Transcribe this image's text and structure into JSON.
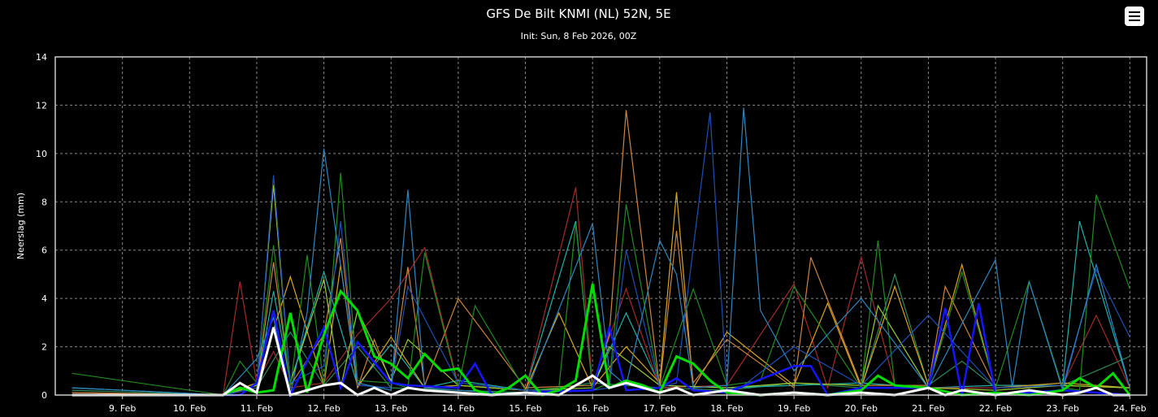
{
  "chart_data": {
    "type": "line",
    "title": "GFS De Bilt KNMI (NL) 52N, 5E",
    "subtitle": "Init: Sun, 8 Feb 2026, 00Z",
    "ylabel": "Neerslag (mm)",
    "xlabel": "",
    "ylim": [
      0,
      14
    ],
    "yticks": [
      0,
      2,
      4,
      6,
      8,
      10,
      12,
      14
    ],
    "xlim": [
      "2026-02-08T00:00",
      "2026-02-24T06:00"
    ],
    "xtick_labels": [
      "9. Feb",
      "10. Feb",
      "11. Feb",
      "12. Feb",
      "13. Feb",
      "14. Feb",
      "15. Feb",
      "16. Feb",
      "17. Feb",
      "18. Feb",
      "19. Feb",
      "20. Feb",
      "21. Feb",
      "22. Feb",
      "23. Feb",
      "24. Feb"
    ],
    "grid": true,
    "legend": "none",
    "colors": {
      "background": "#000000",
      "text": "#ffffff",
      "grid": "#888888",
      "mean": "#ffffff",
      "operational": "#00dd00",
      "control": "#0000ff"
    },
    "series": [
      {
        "color": "#ffffff",
        "width": 3,
        "x": [
          "2026-02-08T06:00",
          "2026-02-10T12:00",
          "2026-02-10T18:00",
          "2026-02-11T00:00",
          "2026-02-11T06:00",
          "2026-02-11T12:00",
          "2026-02-12T00:00",
          "2026-02-12T06:00",
          "2026-02-12T12:00",
          "2026-02-12T18:00",
          "2026-02-13T00:00",
          "2026-02-13T06:00",
          "2026-02-13T12:00",
          "2026-02-14T00:00",
          "2026-02-14T12:00",
          "2026-02-15T00:00",
          "2026-02-15T12:00",
          "2026-02-15T18:00",
          "2026-02-16T00:00",
          "2026-02-16T06:00",
          "2026-02-16T12:00",
          "2026-02-17T00:00",
          "2026-02-17T06:00",
          "2026-02-17T12:00",
          "2026-02-18T00:00",
          "2026-02-18T12:00",
          "2026-02-19T00:00",
          "2026-02-19T12:00",
          "2026-02-20T00:00",
          "2026-02-20T12:00",
          "2026-02-21T00:00",
          "2026-02-21T06:00",
          "2026-02-21T12:00",
          "2026-02-22T00:00",
          "2026-02-22T12:00",
          "2026-02-23T00:00",
          "2026-02-23T06:00",
          "2026-02-23T12:00",
          "2026-02-23T18:00",
          "2026-02-24T00:00"
        ],
        "y": [
          0,
          0,
          0.5,
          0.1,
          2.8,
          0,
          0.4,
          0.5,
          0,
          0.3,
          0,
          0.3,
          0.2,
          0.1,
          0,
          0.1,
          0,
          0.4,
          0.8,
          0.3,
          0.5,
          0.1,
          0.3,
          0,
          0.2,
          0,
          0.1,
          0,
          0.1,
          0,
          0.3,
          0,
          0.2,
          0,
          0.2,
          0,
          0.1,
          0.3,
          0,
          0
        ]
      },
      {
        "color": "#00dd00",
        "width": 3,
        "x": [
          "2026-02-08T06:00",
          "2026-02-10T12:00",
          "2026-02-10T18:00",
          "2026-02-11T00:00",
          "2026-02-11T06:00",
          "2026-02-11T12:00",
          "2026-02-11T18:00",
          "2026-02-12T00:00",
          "2026-02-12T06:00",
          "2026-02-12T12:00",
          "2026-02-12T18:00",
          "2026-02-13T00:00",
          "2026-02-13T06:00",
          "2026-02-13T12:00",
          "2026-02-13T18:00",
          "2026-02-14T00:00",
          "2026-02-14T06:00",
          "2026-02-14T12:00",
          "2026-02-14T18:00",
          "2026-02-15T00:00",
          "2026-02-15T06:00",
          "2026-02-15T12:00",
          "2026-02-15T18:00",
          "2026-02-16T00:00",
          "2026-02-16T06:00",
          "2026-02-16T12:00",
          "2026-02-16T18:00",
          "2026-02-17T00:00",
          "2026-02-17T06:00",
          "2026-02-17T12:00",
          "2026-02-17T18:00",
          "2026-02-18T00:00",
          "2026-02-18T12:00",
          "2026-02-19T00:00",
          "2026-02-19T12:00",
          "2026-02-20T00:00",
          "2026-02-20T06:00",
          "2026-02-20T12:00",
          "2026-02-21T00:00",
          "2026-02-21T12:00",
          "2026-02-22T00:00",
          "2026-02-22T12:00",
          "2026-02-23T00:00",
          "2026-02-23T06:00",
          "2026-02-23T12:00",
          "2026-02-23T18:00",
          "2026-02-24T00:00"
        ],
        "y": [
          0,
          0,
          0.3,
          0.1,
          0.2,
          3.4,
          0.1,
          2.5,
          4.3,
          3.5,
          1.6,
          1.3,
          0.7,
          1.7,
          1,
          1.1,
          0.2,
          0,
          0.3,
          0.8,
          0,
          0.2,
          0.6,
          4.6,
          0.3,
          0.6,
          0.4,
          0.1,
          1.6,
          1.3,
          0.6,
          0.1,
          0,
          0.1,
          0,
          0.2,
          0.8,
          0.4,
          0.3,
          0,
          0.1,
          0,
          0.2,
          0.7,
          0.3,
          0.9,
          0
        ]
      },
      {
        "color": "#1515ff",
        "width": 2.5,
        "x": [
          "2026-02-08T06:00",
          "2026-02-10T18:00",
          "2026-02-11T00:00",
          "2026-02-11T06:00",
          "2026-02-11T12:00",
          "2026-02-12T00:00",
          "2026-02-12T06:00",
          "2026-02-12T12:00",
          "2026-02-13T00:00",
          "2026-02-13T06:00",
          "2026-02-14T00:00",
          "2026-02-14T06:00",
          "2026-02-14T12:00",
          "2026-02-15T00:00",
          "2026-02-16T00:00",
          "2026-02-16T06:00",
          "2026-02-16T12:00",
          "2026-02-17T00:00",
          "2026-02-17T06:00",
          "2026-02-17T12:00",
          "2026-02-18T00:00",
          "2026-02-19T00:00",
          "2026-02-19T06:00",
          "2026-02-19T12:00",
          "2026-02-20T00:00",
          "2026-02-21T00:00",
          "2026-02-21T06:00",
          "2026-02-21T12:00",
          "2026-02-21T18:00",
          "2026-02-22T00:00",
          "2026-02-23T00:00",
          "2026-02-24T00:00"
        ],
        "y": [
          0,
          0,
          0.5,
          3.5,
          0,
          2.8,
          0.3,
          2.2,
          0.5,
          0.4,
          0.3,
          1.3,
          0,
          0.1,
          0.2,
          2.8,
          0.2,
          0.3,
          0.7,
          0.2,
          0.1,
          1.2,
          1.2,
          0,
          0.3,
          0.3,
          3.6,
          0,
          3.8,
          0,
          0.2,
          0
        ]
      },
      {
        "color": "#2e86c1",
        "width": 1.2,
        "x": [
          "2026-02-08T06:00",
          "2026-02-10T12:00",
          "2026-02-11T00:00",
          "2026-02-11T06:00",
          "2026-02-11T12:00",
          "2026-02-11T18:00",
          "2026-02-12T00:00",
          "2026-02-12T12:00",
          "2026-02-13T00:00",
          "2026-02-13T06:00",
          "2026-02-13T12:00",
          "2026-02-14T00:00",
          "2026-02-15T00:00",
          "2026-02-16T00:00",
          "2026-02-16T06:00",
          "2026-02-16T12:00",
          "2026-02-17T00:00",
          "2026-02-17T06:00",
          "2026-02-17T12:00",
          "2026-02-18T00:00",
          "2026-02-18T06:00",
          "2026-02-18T12:00",
          "2026-02-19T00:00",
          "2026-02-20T00:00",
          "2026-02-21T00:00",
          "2026-02-22T00:00",
          "2026-02-22T06:00",
          "2026-02-22T12:00",
          "2026-02-23T00:00",
          "2026-02-23T12:00",
          "2026-02-24T00:00"
        ],
        "y": [
          0.3,
          0,
          1.5,
          3.2,
          0,
          3.4,
          10.2,
          0.5,
          0.2,
          8.5,
          0.3,
          0.2,
          0,
          7.1,
          1,
          0.4,
          6.4,
          5,
          0.3,
          0.4,
          11.9,
          3.5,
          1,
          4,
          0.3,
          5.6,
          0.3,
          4.7,
          0.2,
          5.4,
          0.3
        ]
      },
      {
        "color": "#1f4fb5",
        "width": 1.2,
        "x": [
          "2026-02-08T06:00",
          "2026-02-10T12:00",
          "2026-02-11T00:00",
          "2026-02-11T06:00",
          "2026-02-11T12:00",
          "2026-02-12T00:00",
          "2026-02-12T06:00",
          "2026-02-12T12:00",
          "2026-02-13T00:00",
          "2026-02-13T06:00",
          "2026-02-14T00:00",
          "2026-02-15T00:00",
          "2026-02-16T00:00",
          "2026-02-16T06:00",
          "2026-02-16T12:00",
          "2026-02-17T00:00",
          "2026-02-17T06:00",
          "2026-02-17T18:00",
          "2026-02-18T00:00",
          "2026-02-18T06:00",
          "2026-02-19T00:00",
          "2026-02-20T00:00",
          "2026-02-21T00:00",
          "2026-02-22T00:00",
          "2026-02-23T00:00",
          "2026-02-23T12:00",
          "2026-02-24T00:00"
        ],
        "y": [
          0,
          0,
          0.3,
          9.1,
          0.5,
          1.2,
          7.2,
          0.4,
          0.3,
          4.5,
          0.5,
          0.2,
          0.2,
          0.3,
          6,
          0.3,
          0.5,
          11.7,
          0.2,
          0.4,
          2,
          0.4,
          3.3,
          0.3,
          0.4,
          5.2,
          2.4
        ]
      },
      {
        "color": "#228b22",
        "width": 1.2,
        "x": [
          "2026-02-08T06:00",
          "2026-02-10T12:00",
          "2026-02-10T18:00",
          "2026-02-11T00:00",
          "2026-02-11T06:00",
          "2026-02-11T12:00",
          "2026-02-11T18:00",
          "2026-02-12T00:00",
          "2026-02-12T06:00",
          "2026-02-12T12:00",
          "2026-02-13T00:00",
          "2026-02-13T06:00",
          "2026-02-13T12:00",
          "2026-02-14T00:00",
          "2026-02-14T06:00",
          "2026-02-15T00:00",
          "2026-02-15T12:00",
          "2026-02-15T18:00",
          "2026-02-16T00:00",
          "2026-02-16T06:00",
          "2026-02-16T12:00",
          "2026-02-17T00:00",
          "2026-02-17T12:00",
          "2026-02-18T00:00",
          "2026-02-18T12:00",
          "2026-02-19T00:00",
          "2026-02-20T00:00",
          "2026-02-20T06:00",
          "2026-02-20T12:00",
          "2026-02-21T00:00",
          "2026-02-21T12:00",
          "2026-02-22T00:00",
          "2026-02-22T12:00",
          "2026-02-23T00:00",
          "2026-02-23T06:00",
          "2026-02-23T12:00",
          "2026-02-24T00:00"
        ],
        "y": [
          0.9,
          0,
          1.4,
          0.5,
          6.2,
          0.3,
          5.8,
          0.4,
          9.2,
          0.6,
          0.5,
          0.3,
          5.9,
          0.3,
          3.7,
          0.2,
          0.3,
          7.1,
          0.2,
          0.5,
          7.9,
          0.3,
          4.4,
          0.4,
          0.6,
          4.5,
          0.3,
          6.4,
          0.4,
          0.3,
          5.1,
          0.3,
          4.7,
          0.3,
          0.2,
          8.3,
          4.4
        ]
      },
      {
        "color": "#9acd32",
        "width": 1.2,
        "x": [
          "2026-02-08T06:00",
          "2026-02-10T12:00",
          "2026-02-11T00:00",
          "2026-02-11T06:00",
          "2026-02-11T12:00",
          "2026-02-12T00:00",
          "2026-02-12T06:00",
          "2026-02-12T12:00",
          "2026-02-13T00:00",
          "2026-02-13T06:00",
          "2026-02-14T00:00",
          "2026-02-15T00:00",
          "2026-02-16T00:00",
          "2026-02-16T06:00",
          "2026-02-17T00:00",
          "2026-02-18T00:00",
          "2026-02-19T00:00",
          "2026-02-20T00:00",
          "2026-02-20T06:00",
          "2026-02-21T00:00",
          "2026-02-22T00:00",
          "2026-02-23T00:00",
          "2026-02-24T00:00"
        ],
        "y": [
          0,
          0,
          0.4,
          8.7,
          0.5,
          4.8,
          0.3,
          3.5,
          0.6,
          2.3,
          0.4,
          0.2,
          0.3,
          2,
          0.4,
          0.3,
          0.5,
          0.4,
          3.7,
          0.3,
          0.2,
          0.4,
          0.3
        ]
      },
      {
        "color": "#cd853f",
        "width": 1.2,
        "x": [
          "2026-02-08T06:00",
          "2026-02-10T12:00",
          "2026-02-11T00:00",
          "2026-02-11T06:00",
          "2026-02-11T12:00",
          "2026-02-12T00:00",
          "2026-02-12T06:00",
          "2026-02-12T12:00",
          "2026-02-12T18:00",
          "2026-02-13T00:00",
          "2026-02-13T06:00",
          "2026-02-13T12:00",
          "2026-02-14T00:00",
          "2026-02-15T00:00",
          "2026-02-16T00:00",
          "2026-02-16T06:00",
          "2026-02-16T12:00",
          "2026-02-17T00:00",
          "2026-02-17T06:00",
          "2026-02-17T12:00",
          "2026-02-18T00:00",
          "2026-02-19T00:00",
          "2026-02-19T06:00",
          "2026-02-20T00:00",
          "2026-02-21T00:00",
          "2026-02-21T06:00",
          "2026-02-22T00:00",
          "2026-02-23T00:00",
          "2026-02-24T00:00"
        ],
        "y": [
          0.1,
          0,
          0.3,
          5.5,
          0.4,
          2.5,
          6.5,
          0.3,
          2.3,
          0.5,
          5.3,
          0.4,
          4,
          0.3,
          0.4,
          2.5,
          11.8,
          0.3,
          6.8,
          0.5,
          2.3,
          0.3,
          5.7,
          0.4,
          0.4,
          4.5,
          0.3,
          0.4,
          0.3
        ]
      },
      {
        "color": "#daa520",
        "width": 1.2,
        "x": [
          "2026-02-08T06:00",
          "2026-02-10T12:00",
          "2026-02-11T00:00",
          "2026-02-11T12:00",
          "2026-02-12T00:00",
          "2026-02-12T06:00",
          "2026-02-12T12:00",
          "2026-02-13T00:00",
          "2026-02-13T12:00",
          "2026-02-14T00:00",
          "2026-02-15T00:00",
          "2026-02-15T12:00",
          "2026-02-16T00:00",
          "2026-02-16T12:00",
          "2026-02-17T00:00",
          "2026-02-17T06:00",
          "2026-02-17T12:00",
          "2026-02-18T00:00",
          "2026-02-19T00:00",
          "2026-02-19T12:00",
          "2026-02-20T00:00",
          "2026-02-20T12:00",
          "2026-02-21T00:00",
          "2026-02-21T12:00",
          "2026-02-22T00:00",
          "2026-02-23T00:00",
          "2026-02-24T00:00"
        ],
        "y": [
          0,
          0,
          0.5,
          4.9,
          0.4,
          5.4,
          0.3,
          2.4,
          0.3,
          0.4,
          0.2,
          3.4,
          0.3,
          2,
          0.5,
          8.4,
          0.3,
          2.6,
          0.4,
          3.8,
          0.3,
          4.5,
          0.4,
          5.4,
          0.3,
          0.5,
          0.3
        ]
      },
      {
        "color": "#a52a2a",
        "width": 1.2,
        "x": [
          "2026-02-08T06:00",
          "2026-02-10T12:00",
          "2026-02-10T18:00",
          "2026-02-11T00:00",
          "2026-02-11T06:00",
          "2026-02-11T12:00",
          "2026-02-12T00:00",
          "2026-02-12T12:00",
          "2026-02-13T00:00",
          "2026-02-13T12:00",
          "2026-02-14T00:00",
          "2026-02-15T00:00",
          "2026-02-15T18:00",
          "2026-02-16T00:00",
          "2026-02-16T12:00",
          "2026-02-17T00:00",
          "2026-02-18T00:00",
          "2026-02-19T00:00",
          "2026-02-19T12:00",
          "2026-02-20T00:00",
          "2026-02-20T12:00",
          "2026-02-21T00:00",
          "2026-02-22T00:00",
          "2026-02-23T00:00",
          "2026-02-23T12:00",
          "2026-02-24T00:00"
        ],
        "y": [
          0.1,
          0,
          4.7,
          0.5,
          1.8,
          0.3,
          0.5,
          2.5,
          4,
          6.1,
          0.4,
          0.2,
          8.6,
          0.4,
          4.4,
          0.3,
          0.4,
          4.6,
          0.3,
          5.7,
          0.4,
          0.3,
          0.3,
          0.4,
          3.3,
          0.3
        ]
      },
      {
        "color": "#20b2aa",
        "width": 1.2,
        "x": [
          "2026-02-08T06:00",
          "2026-02-10T12:00",
          "2026-02-11T00:00",
          "2026-02-11T06:00",
          "2026-02-11T12:00",
          "2026-02-12T00:00",
          "2026-02-12T12:00",
          "2026-02-13T00:00",
          "2026-02-13T12:00",
          "2026-02-14T00:00",
          "2026-02-15T00:00",
          "2026-02-15T18:00",
          "2026-02-16T00:00",
          "2026-02-16T12:00",
          "2026-02-17T00:00",
          "2026-02-18T00:00",
          "2026-02-19T00:00",
          "2026-02-20T00:00",
          "2026-02-21T00:00",
          "2026-02-22T00:00",
          "2026-02-23T00:00",
          "2026-02-23T06:00",
          "2026-02-24T00:00"
        ],
        "y": [
          0.3,
          0,
          0.4,
          4.3,
          0.5,
          5.1,
          0.4,
          2.1,
          0.3,
          0.6,
          0.2,
          7.2,
          0.3,
          3.4,
          0.4,
          0.3,
          0.4,
          0.5,
          0.3,
          0.4,
          0.4,
          7.2,
          0.3
        ]
      },
      {
        "color": "#2e8b57",
        "width": 1.2,
        "x": [
          "2026-02-08T06:00",
          "2026-02-10T12:00",
          "2026-02-11T00:00",
          "2026-02-11T12:00",
          "2026-02-12T00:00",
          "2026-02-12T12:00",
          "2026-02-13T00:00",
          "2026-02-14T00:00",
          "2026-02-15T00:00",
          "2026-02-16T00:00",
          "2026-02-17T00:00",
          "2026-02-18T00:00",
          "2026-02-19T00:00",
          "2026-02-20T00:00",
          "2026-02-20T12:00",
          "2026-02-21T00:00",
          "2026-02-21T12:00",
          "2026-02-22T00:00",
          "2026-02-23T00:00",
          "2026-02-24T00:00"
        ],
        "y": [
          0.2,
          0,
          0.3,
          2.6,
          0.4,
          2,
          0.3,
          0.2,
          0.1,
          0.5,
          0.3,
          0.2,
          0.5,
          0.3,
          5,
          0.4,
          1.4,
          0.3,
          0.4,
          1.6
        ]
      }
    ]
  }
}
